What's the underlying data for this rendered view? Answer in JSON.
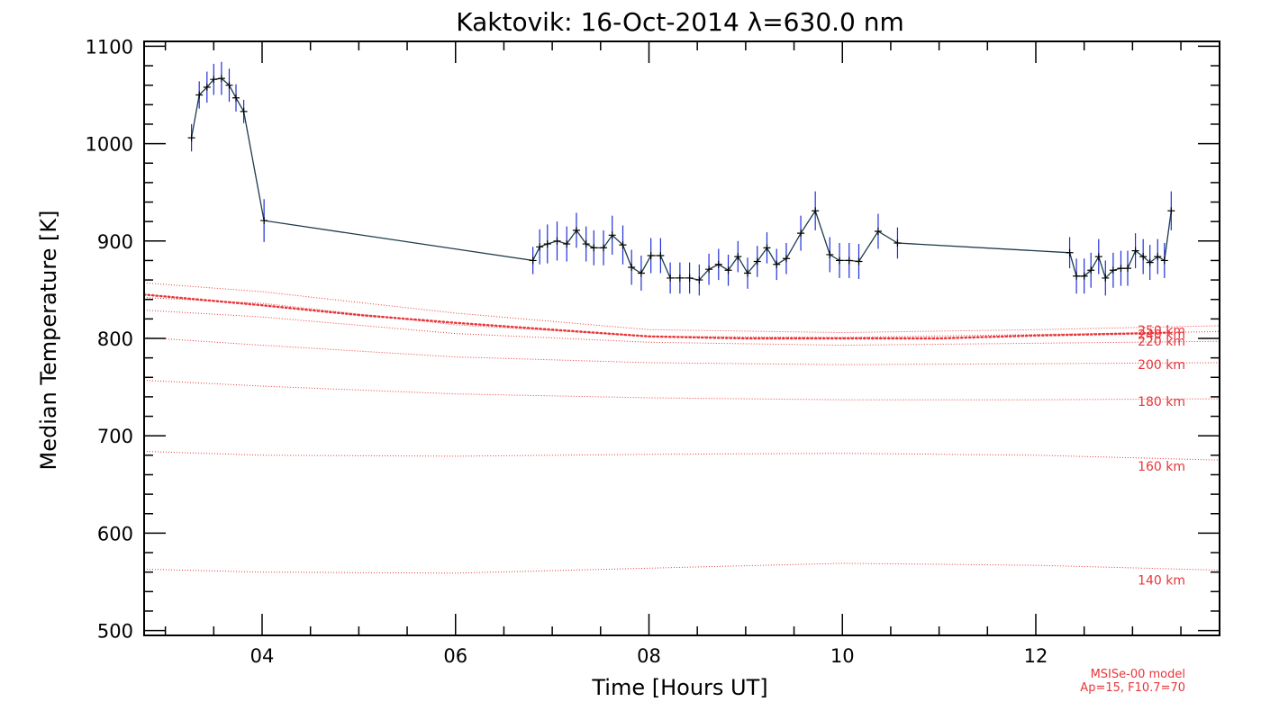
{
  "chart_data": {
    "type": "line",
    "title": "Kaktovik: 16-Oct-2014 λ=630.0 nm",
    "xlabel": "Time [Hours UT]",
    "ylabel": "Median Temperature [K]",
    "xlim": [
      2.78,
      13.9
    ],
    "ylim": [
      495,
      1105
    ],
    "x_ticks": [
      4,
      6,
      8,
      10,
      12
    ],
    "x_tick_labels": [
      "04",
      "06",
      "08",
      "10",
      "12"
    ],
    "y_ticks": [
      500,
      600,
      700,
      800,
      900,
      1000,
      1100
    ],
    "y_tick_labels": [
      "500",
      "600",
      "700",
      "800",
      "900",
      "1000",
      "1100"
    ],
    "grid": false,
    "colors": {
      "measured": "#000000",
      "error_bars": "#1f2fd6",
      "model": "#e8363a",
      "axes": "#000000"
    },
    "series": [
      {
        "style": "black line with + markers and blue error bars",
        "points": [
          {
            "x": 3.27,
            "y": 1006,
            "err": 14
          },
          {
            "x": 3.35,
            "y": 1050,
            "err": 14
          },
          {
            "x": 3.43,
            "y": 1058,
            "err": 16
          },
          {
            "x": 3.5,
            "y": 1066,
            "err": 16
          },
          {
            "x": 3.58,
            "y": 1067,
            "err": 17
          },
          {
            "x": 3.66,
            "y": 1060,
            "err": 17
          },
          {
            "x": 3.73,
            "y": 1047,
            "err": 14
          },
          {
            "x": 3.81,
            "y": 1033,
            "err": 12
          },
          {
            "x": 4.02,
            "y": 921,
            "err": 22
          },
          {
            "x": 6.8,
            "y": 880,
            "err": 14
          },
          {
            "x": 6.87,
            "y": 894,
            "err": 18
          },
          {
            "x": 6.95,
            "y": 897,
            "err": 20
          },
          {
            "x": 7.05,
            "y": 900,
            "err": 20
          },
          {
            "x": 7.15,
            "y": 897,
            "err": 18
          },
          {
            "x": 7.25,
            "y": 911,
            "err": 18
          },
          {
            "x": 7.35,
            "y": 897,
            "err": 18
          },
          {
            "x": 7.43,
            "y": 893,
            "err": 18
          },
          {
            "x": 7.53,
            "y": 893,
            "err": 18
          },
          {
            "x": 7.62,
            "y": 906,
            "err": 20
          },
          {
            "x": 7.73,
            "y": 896,
            "err": 20
          },
          {
            "x": 7.82,
            "y": 873,
            "err": 18
          },
          {
            "x": 7.92,
            "y": 867,
            "err": 18
          },
          {
            "x": 8.02,
            "y": 885,
            "err": 18
          },
          {
            "x": 8.12,
            "y": 885,
            "err": 18
          },
          {
            "x": 8.22,
            "y": 862,
            "err": 16
          },
          {
            "x": 8.32,
            "y": 862,
            "err": 16
          },
          {
            "x": 8.42,
            "y": 862,
            "err": 16
          },
          {
            "x": 8.52,
            "y": 860,
            "err": 16
          },
          {
            "x": 8.62,
            "y": 871,
            "err": 16
          },
          {
            "x": 8.72,
            "y": 876,
            "err": 16
          },
          {
            "x": 8.82,
            "y": 870,
            "err": 16
          },
          {
            "x": 8.92,
            "y": 884,
            "err": 16
          },
          {
            "x": 9.02,
            "y": 867,
            "err": 16
          },
          {
            "x": 9.12,
            "y": 879,
            "err": 16
          },
          {
            "x": 9.22,
            "y": 893,
            "err": 16
          },
          {
            "x": 9.32,
            "y": 876,
            "err": 16
          },
          {
            "x": 9.42,
            "y": 882,
            "err": 16
          },
          {
            "x": 9.57,
            "y": 908,
            "err": 18
          },
          {
            "x": 9.72,
            "y": 931,
            "err": 20
          },
          {
            "x": 9.87,
            "y": 886,
            "err": 18
          },
          {
            "x": 9.97,
            "y": 880,
            "err": 18
          },
          {
            "x": 10.07,
            "y": 880,
            "err": 18
          },
          {
            "x": 10.17,
            "y": 879,
            "err": 18
          },
          {
            "x": 10.37,
            "y": 910,
            "err": 18
          },
          {
            "x": 10.57,
            "y": 898,
            "err": 16
          },
          {
            "x": 12.35,
            "y": 888,
            "err": 16
          },
          {
            "x": 12.42,
            "y": 864,
            "err": 18
          },
          {
            "x": 12.5,
            "y": 864,
            "err": 18
          },
          {
            "x": 12.57,
            "y": 870,
            "err": 18
          },
          {
            "x": 12.65,
            "y": 884,
            "err": 18
          },
          {
            "x": 12.72,
            "y": 862,
            "err": 18
          },
          {
            "x": 12.8,
            "y": 870,
            "err": 18
          },
          {
            "x": 12.88,
            "y": 872,
            "err": 18
          },
          {
            "x": 12.95,
            "y": 872,
            "err": 18
          },
          {
            "x": 13.03,
            "y": 890,
            "err": 18
          },
          {
            "x": 13.11,
            "y": 884,
            "err": 18
          },
          {
            "x": 13.18,
            "y": 878,
            "err": 18
          },
          {
            "x": 13.26,
            "y": 884,
            "err": 18
          },
          {
            "x": 13.33,
            "y": 880,
            "err": 18
          },
          {
            "x": 13.4,
            "y": 931,
            "err": 20
          }
        ]
      },
      {
        "style": "red dotted (bold), model temperature at emission height",
        "x": [
          2.78,
          4.0,
          5.0,
          6.0,
          7.0,
          8.0,
          9.0,
          10.0,
          11.0,
          12.0,
          13.0,
          13.4
        ],
        "y": [
          845,
          834,
          824,
          816,
          809,
          802,
          800,
          800,
          800,
          803,
          805,
          806
        ]
      }
    ],
    "altitude_profiles": [
      {
        "label": "250 km",
        "x": [
          2.78,
          4,
          6,
          8,
          10,
          12,
          13.9
        ],
        "y": [
          857,
          848,
          826,
          809,
          806,
          809,
          813
        ]
      },
      {
        "label": "240 km",
        "x": [
          2.78,
          4,
          6,
          8,
          10,
          12,
          13.9
        ],
        "y": [
          842,
          836,
          814,
          802,
          801,
          804,
          807
        ]
      },
      {
        "label": "220 km",
        "x": [
          2.78,
          4,
          6,
          8,
          10,
          12,
          13.9
        ],
        "y": [
          829,
          822,
          805,
          796,
          793,
          795,
          797
        ]
      },
      {
        "label": "200 km",
        "x": [
          2.78,
          4,
          6,
          8,
          10,
          12,
          13.9
        ],
        "y": [
          801,
          793,
          781,
          775,
          773,
          774,
          775
        ]
      },
      {
        "label": "180 km",
        "x": [
          2.78,
          4,
          6,
          8,
          10,
          12,
          13.9
        ],
        "y": [
          757,
          751,
          743,
          739,
          737,
          737,
          738
        ]
      },
      {
        "label": "160 km",
        "x": [
          2.78,
          4,
          6,
          8,
          10,
          12,
          13.9
        ],
        "y": [
          684,
          680,
          679,
          681,
          682,
          680,
          675
        ]
      },
      {
        "label": "140 km",
        "x": [
          2.78,
          4,
          6,
          8,
          10,
          12,
          13.9
        ],
        "y": [
          563,
          560,
          559,
          564,
          569,
          567,
          562
        ]
      }
    ],
    "annotations": [
      "MSISe-00 model",
      "Ap=15, F10.7=70"
    ]
  }
}
